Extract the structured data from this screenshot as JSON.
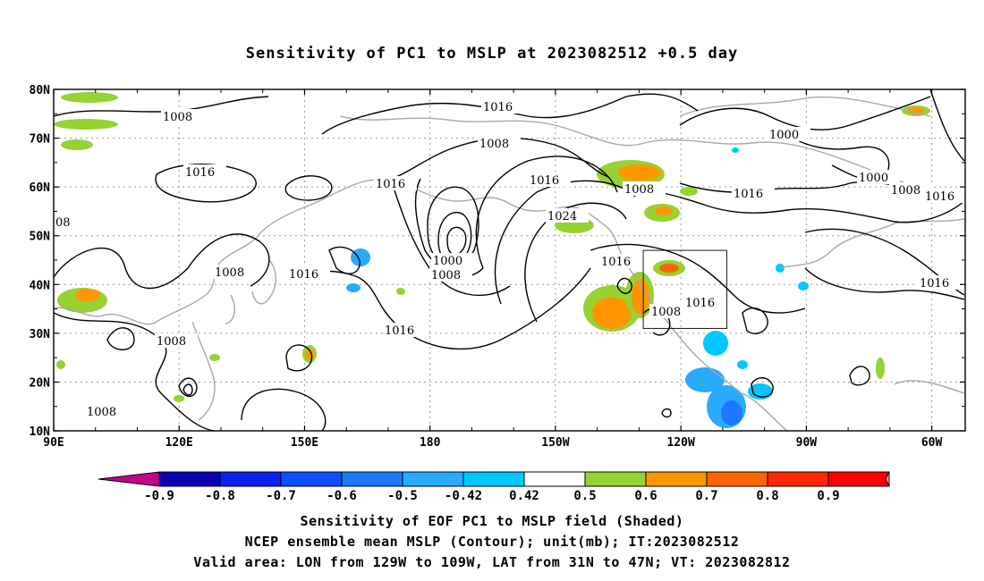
{
  "title": "Sensitivity of PC1 to MSLP at 2023082512 +0.5 day",
  "map": {
    "lat_labels": [
      "80N",
      "70N",
      "60N",
      "50N",
      "40N",
      "30N",
      "20N",
      "10N"
    ],
    "lon_labels": [
      "90E",
      "120E",
      "150E",
      "180",
      "150W",
      "120W",
      "90W",
      "60W"
    ],
    "contour_unit": "mb",
    "contour_labels": [
      "1008",
      "1016",
      "1016",
      "1008",
      "1016",
      "1000",
      "1000",
      "1008",
      "1016",
      "1016",
      "1016",
      "1016",
      "1024",
      "1008",
      "1000",
      "1008",
      "1016",
      "1008",
      "1016",
      "1008",
      "1016",
      "1016",
      "1008",
      "1008",
      "08"
    ],
    "valid_box": {
      "lon_min": -129,
      "lon_max": -109,
      "lat_min": 31,
      "lat_max": 47
    }
  },
  "colorbar": {
    "labels": [
      "-0.9",
      "-0.8",
      "-0.7",
      "-0.6",
      "-0.5",
      "-0.42",
      "0.42",
      "0.5",
      "0.6",
      "0.7",
      "0.8",
      "0.9"
    ],
    "colors": [
      "#0a00b4",
      "#0a23f0",
      "#0a50ff",
      "#1e78ff",
      "#28aaff",
      "#00c8ff",
      "#ffffff",
      "#96d232",
      "#ff9600",
      "#ff6400",
      "#ff2800",
      "#ff0000"
    ],
    "end_colors": {
      "low": "#c8008c",
      "high": "#ff9ac8"
    }
  },
  "caption": {
    "line1": "Sensitivity of EOF PC1 to MSLP field (Shaded)",
    "line2": "NCEP ensemble mean MSLP (Contour); unit(mb); IT:2023082512",
    "line3": "Valid area: LON from 129W to 109W, LAT from 31N to 47N; VT: 2023082812"
  }
}
